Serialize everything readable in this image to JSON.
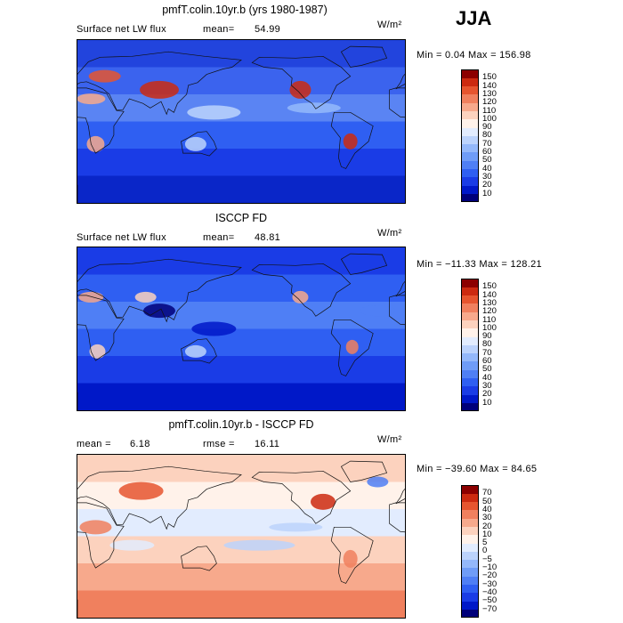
{
  "season": "JJA",
  "unit": "W/m²",
  "panels": [
    {
      "title": "pmfT.colin.10yr.b (yrs 1980-1987)",
      "left_label": "Surface net LW flux",
      "stat1_label": "mean=",
      "stat1_value": "54.99",
      "stat2_label": "",
      "stat2_value": "",
      "range": "Min =    0.04 Max = 156.98"
    },
    {
      "title": "ISCCP FD",
      "left_label": "Surface net LW flux",
      "stat1_label": "mean=",
      "stat1_value": "48.81",
      "stat2_label": "",
      "stat2_value": "",
      "range": "Min = −11.33 Max = 128.21"
    },
    {
      "title": "pmfT.colin.10yr.b - ISCCP FD",
      "left_label": "",
      "stat1_label": "mean =",
      "stat1_value": "6.18",
      "stat2_label": "rmse =",
      "stat2_value": "16.11",
      "range": "Min = −39.60 Max =  84.65"
    }
  ],
  "chart_data": [
    {
      "type": "heatmap",
      "title": "pmfT.colin.10yr.b (yrs 1980-1987)",
      "variable": "Surface net LW flux",
      "mean": 54.99,
      "min": 0.04,
      "max": 156.98,
      "levels": [
        10,
        20,
        30,
        40,
        50,
        60,
        70,
        80,
        90,
        100,
        110,
        120,
        130,
        140,
        150
      ],
      "colors": [
        "#00007a",
        "#0018c8",
        "#1a3ce6",
        "#2f5ff2",
        "#4f7ff5",
        "#6f9cf7",
        "#94b8fa",
        "#bcd3fc",
        "#e2ecfe",
        "#fff2ea",
        "#fcd2be",
        "#f7a98c",
        "#f0805e",
        "#e6552f",
        "#cc2a10",
        "#8c0000"
      ]
    },
    {
      "type": "heatmap",
      "title": "ISCCP FD",
      "variable": "Surface net LW flux",
      "mean": 48.81,
      "min": -11.33,
      "max": 128.21,
      "levels": [
        10,
        20,
        30,
        40,
        50,
        60,
        70,
        80,
        90,
        100,
        110,
        120,
        130,
        140,
        150
      ],
      "colors": [
        "#00007a",
        "#0018c8",
        "#1a3ce6",
        "#2f5ff2",
        "#4f7ff5",
        "#6f9cf7",
        "#94b8fa",
        "#bcd3fc",
        "#e2ecfe",
        "#fff2ea",
        "#fcd2be",
        "#f7a98c",
        "#f0805e",
        "#e6552f",
        "#cc2a10",
        "#8c0000"
      ]
    },
    {
      "type": "heatmap",
      "title": "pmfT.colin.10yr.b - ISCCP FD",
      "mean": 6.18,
      "rmse": 16.11,
      "min": -39.6,
      "max": 84.65,
      "levels": [
        -70,
        -50,
        -40,
        -30,
        -20,
        -10,
        -5,
        0,
        5,
        10,
        20,
        30,
        40,
        50,
        70
      ],
      "colors": [
        "#00007a",
        "#0018c8",
        "#1a3ce6",
        "#2f5ff2",
        "#4f7ff5",
        "#6f9cf7",
        "#94b8fa",
        "#bcd3fc",
        "#e2ecfe",
        "#fff2ea",
        "#fcd2be",
        "#f7a98c",
        "#f0805e",
        "#e6552f",
        "#cc2a10",
        "#8c0000"
      ]
    }
  ]
}
